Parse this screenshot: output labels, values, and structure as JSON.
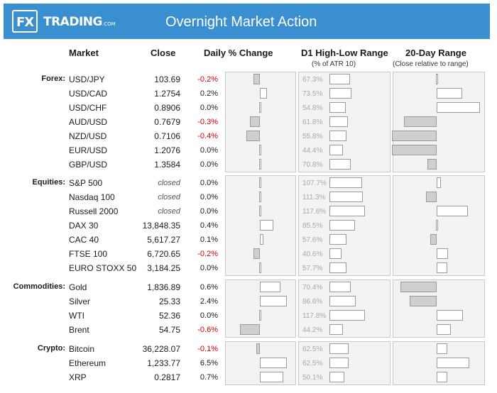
{
  "header": {
    "brand_fx": "FX",
    "brand_name": "TRADING",
    "brand_suffix": ".COM",
    "title": "Overnight Market Action"
  },
  "columns": {
    "market": "Market",
    "close": "Close",
    "daily": "Daily % Change",
    "range": "D1 High-Low Range",
    "range_sub": "(% of ATR 10)",
    "twenty": "20-Day Range",
    "twenty_sub": "(Close relative to range)"
  },
  "sections": [
    {
      "label": "Forex:",
      "rows": [
        {
          "name": "USD/JPY",
          "close": "103.69",
          "pct": "-0.2%",
          "atr": "67.3%",
          "pct_val": -0.2,
          "atr_val": 67.3,
          "pos20": 0.0
        },
        {
          "name": "USD/CAD",
          "close": "1.2754",
          "pct": "0.2%",
          "atr": "73.5%",
          "pct_val": 0.2,
          "atr_val": 73.5,
          "pos20": 0.34
        },
        {
          "name": "USD/CHF",
          "close": "0.8906",
          "pct": "0.0%",
          "atr": "54.8%",
          "pct_val": 0.0,
          "atr_val": 54.8,
          "pos20": 0.58
        },
        {
          "name": "AUD/USD",
          "close": "0.7679",
          "pct": "-0.3%",
          "atr": "61.8%",
          "pct_val": -0.3,
          "atr_val": 61.8,
          "pos20": -0.44
        },
        {
          "name": "NZD/USD",
          "close": "0.7106",
          "pct": "-0.4%",
          "atr": "55.8%",
          "pct_val": -0.4,
          "atr_val": 55.8,
          "pos20": -0.6
        },
        {
          "name": "EUR/USD",
          "close": "1.2076",
          "pct": "0.0%",
          "atr": "44.4%",
          "pct_val": 0.0,
          "atr_val": 44.4,
          "pos20": -0.6
        },
        {
          "name": "GBP/USD",
          "close": "1.3584",
          "pct": "0.0%",
          "atr": "70.8%",
          "pct_val": 0.0,
          "atr_val": 70.8,
          "pos20": -0.12
        }
      ]
    },
    {
      "label": "Equities:",
      "rows": [
        {
          "name": "S&P 500",
          "close": "closed",
          "pct": "0.0%",
          "atr": "107.7%",
          "pct_val": 0.0,
          "atr_val": 107.7,
          "pos20": 0.06,
          "closed": true
        },
        {
          "name": "Nasdaq 100",
          "close": "closed",
          "pct": "0.0%",
          "atr": "111.3%",
          "pct_val": 0.0,
          "atr_val": 111.3,
          "pos20": -0.14,
          "closed": true
        },
        {
          "name": "Russell 2000",
          "close": "closed",
          "pct": "0.0%",
          "atr": "117.6%",
          "pct_val": 0.0,
          "atr_val": 117.6,
          "pos20": 0.42,
          "closed": true
        },
        {
          "name": "DAX 30",
          "close": "13,848.35",
          "pct": "0.4%",
          "atr": "85.5%",
          "pct_val": 0.4,
          "atr_val": 85.5,
          "pos20": 0.0
        },
        {
          "name": "CAC 40",
          "close": "5,617.27",
          "pct": "0.1%",
          "atr": "57.6%",
          "pct_val": 0.1,
          "atr_val": 57.6,
          "pos20": -0.09
        },
        {
          "name": "FTSE 100",
          "close": "6,720.65",
          "pct": "-0.2%",
          "atr": "40.6%",
          "pct_val": -0.2,
          "atr_val": 40.6,
          "pos20": 0.15
        },
        {
          "name": "EURO STOXX 50",
          "close": "3,184.25",
          "pct": "0.0%",
          "atr": "57.7%",
          "pct_val": 0.0,
          "atr_val": 57.7,
          "pos20": 0.14
        }
      ]
    },
    {
      "label": "Commodities:",
      "rows": [
        {
          "name": "Gold",
          "close": "1,836.89",
          "pct": "0.6%",
          "atr": "70.4%",
          "pct_val": 0.6,
          "atr_val": 70.4,
          "pos20": -0.49
        },
        {
          "name": "Silver",
          "close": "25.33",
          "pct": "2.4%",
          "atr": "86.6%",
          "pct_val": 2.4,
          "atr_val": 86.6,
          "pos20": -0.36
        },
        {
          "name": "WTI",
          "close": "52.36",
          "pct": "0.0%",
          "atr": "117.8%",
          "pct_val": 0.0,
          "atr_val": 117.8,
          "pos20": 0.35
        },
        {
          "name": "Brent",
          "close": "54.75",
          "pct": "-0.6%",
          "atr": "44.2%",
          "pct_val": -0.6,
          "atr_val": 44.2,
          "pos20": 0.19
        }
      ]
    },
    {
      "label": "Crypto:",
      "rows": [
        {
          "name": "Bitcoin",
          "close": "36,228.07",
          "pct": "-0.1%",
          "atr": "62.5%",
          "pct_val": -0.1,
          "atr_val": 62.5,
          "pos20": 0.14
        },
        {
          "name": "Ethereum",
          "close": "1,233.77",
          "pct": "6.5%",
          "atr": "62.5%",
          "pct_val": 6.5,
          "atr_val": 62.5,
          "pos20": 0.44
        },
        {
          "name": "XRP",
          "close": "0.2817",
          "pct": "0.7%",
          "atr": "50.1%",
          "pct_val": 0.7,
          "atr_val": 50.1,
          "pos20": 0.14
        }
      ]
    }
  ]
}
